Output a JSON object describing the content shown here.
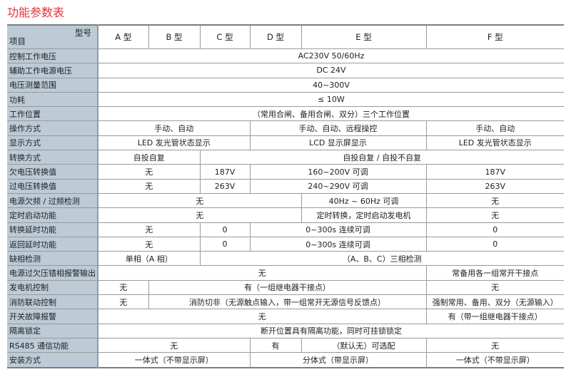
{
  "title": "功能参数表",
  "header": {
    "corner_top": "型号",
    "corner_bottom": "项目",
    "models": [
      "A 型",
      "B 型",
      "C 型",
      "D 型",
      "E 型",
      "F 型"
    ]
  },
  "rows": [
    {
      "label": "控制工作电压",
      "cells": [
        {
          "text": "AC230V 50/60Hz",
          "span": 6
        }
      ]
    },
    {
      "label": "辅助工作电源电压",
      "cells": [
        {
          "text": "DC 24V",
          "span": 6
        }
      ]
    },
    {
      "label": "电压测量范围",
      "cells": [
        {
          "text": "40~300V",
          "span": 6
        }
      ]
    },
    {
      "label": "功耗",
      "cells": [
        {
          "text": "≤ 10W",
          "span": 6
        }
      ]
    },
    {
      "label": "工作位置",
      "cells": [
        {
          "text": "（常用合闸、备用合闸、双分）三个工作位置",
          "span": 6
        }
      ]
    },
    {
      "label": "操作方式",
      "cells": [
        {
          "text": "手动、自动",
          "span": 3
        },
        {
          "text": "手动、自动、远程操控",
          "span": 2
        },
        {
          "text": "手动、自动",
          "span": 1
        }
      ]
    },
    {
      "label": "显示方式",
      "cells": [
        {
          "text": "LED 发光管状态显示",
          "span": 3
        },
        {
          "text": "LCD 显示屏显示",
          "span": 2
        },
        {
          "text": "LED 发光管状态显示",
          "span": 1
        }
      ]
    },
    {
      "label": "转换方式",
      "cells": [
        {
          "text": "自投自复",
          "span": 2
        },
        {
          "text": "自投自复 / 自投不自复",
          "span": 4
        }
      ]
    },
    {
      "label": "欠电压转换值",
      "cells": [
        {
          "text": "无",
          "span": 2
        },
        {
          "text": "187V",
          "span": 1
        },
        {
          "text": "160~200V 可调",
          "span": 2
        },
        {
          "text": "187V",
          "span": 1
        }
      ]
    },
    {
      "label": "过电压转换值",
      "cells": [
        {
          "text": "无",
          "span": 2
        },
        {
          "text": "263V",
          "span": 1
        },
        {
          "text": "240~290V 可调",
          "span": 2
        },
        {
          "text": "263V",
          "span": 1
        }
      ]
    },
    {
      "label": "电源欠频 / 过频检测",
      "cells": [
        {
          "text": "无",
          "span": 4
        },
        {
          "text": "40Hz ~ 60Hz 可调",
          "span": 1
        },
        {
          "text": "无",
          "span": 1
        }
      ]
    },
    {
      "label": "定时启动功能",
      "cells": [
        {
          "text": "无",
          "span": 4
        },
        {
          "text": "定时转换，定时启动发电机",
          "span": 1
        },
        {
          "text": "无",
          "span": 1
        }
      ]
    },
    {
      "label": "转换延时功能",
      "cells": [
        {
          "text": "无",
          "span": 2
        },
        {
          "text": "0",
          "span": 1
        },
        {
          "text": "0~300s 连续可调",
          "span": 2
        },
        {
          "text": "0",
          "span": 1
        }
      ]
    },
    {
      "label": "返回延时功能",
      "cells": [
        {
          "text": "无",
          "span": 2
        },
        {
          "text": "0",
          "span": 1
        },
        {
          "text": "0~300s 连续可调",
          "span": 2
        },
        {
          "text": "0",
          "span": 1
        }
      ]
    },
    {
      "label": "缺相检测",
      "cells": [
        {
          "text": "单相（A 相）",
          "span": 2
        },
        {
          "text": "（A、B、C）三相检测",
          "span": 4
        }
      ]
    },
    {
      "label": "电源过欠压错相报警输出",
      "cells": [
        {
          "text": "无",
          "span": 5
        },
        {
          "text": "常备用各一组常开干接点",
          "span": 1
        }
      ]
    },
    {
      "label": "发电机控制",
      "cells": [
        {
          "text": "无",
          "span": 1
        },
        {
          "text": "有（一组继电器干接点）",
          "span": 4
        },
        {
          "text": "无",
          "span": 1
        }
      ]
    },
    {
      "label": "消防联动控制",
      "cells": [
        {
          "text": "无",
          "span": 1
        },
        {
          "text": "消防切非（无源触点输入，带一组常开无源信号反馈点）",
          "span": 4
        },
        {
          "text": "强制常用、备用、双分（无源输入）",
          "span": 1
        }
      ]
    },
    {
      "label": "开关故障报警",
      "cells": [
        {
          "text": "无",
          "span": 5
        },
        {
          "text": "有（带一组继电器干接点）",
          "span": 1
        }
      ]
    },
    {
      "label": "隔离锁定",
      "cells": [
        {
          "text": "断开位置具有隔离功能，同时可挂锁锁定",
          "span": 6
        }
      ]
    },
    {
      "label": "RS485 通信功能",
      "cells": [
        {
          "text": "无",
          "span": 3
        },
        {
          "text": "有",
          "span": 1
        },
        {
          "text": "（默认无）可选配",
          "span": 1
        },
        {
          "text": "无",
          "span": 1
        }
      ]
    },
    {
      "label": "安装方式",
      "cells": [
        {
          "text": "一体式（不带显示屏）",
          "span": 3
        },
        {
          "text": "分体式（带显示屏）",
          "span": 2
        },
        {
          "text": "一体式（不带显示屏）",
          "span": 1
        }
      ]
    }
  ]
}
